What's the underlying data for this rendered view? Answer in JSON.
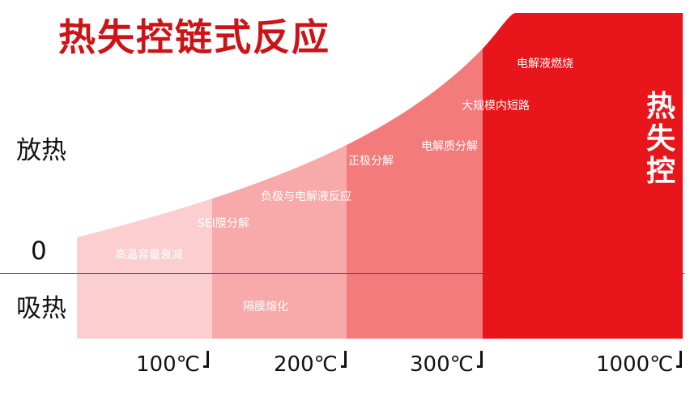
{
  "title": "热失控链式反应",
  "y_labels": {
    "exothermic": "放热",
    "zero": "0",
    "endothermic": "吸热"
  },
  "events": {
    "capacity_fade": "高温容量衰减",
    "sei_decomposition": "SEI膜分解",
    "separator_melting": "隔膜熔化",
    "anode_electrolyte": "负极与电解液反应",
    "cathode_decomposition": "正极分解",
    "electrolyte_decomposition": "电解质分解",
    "internal_short": "大规模内短路",
    "electrolyte_combustion": "电解液燃烧"
  },
  "temperatures": [
    "100℃",
    "200℃",
    "300℃",
    "1000℃"
  ],
  "runaway_label": "热\n失\n控",
  "colors": {
    "title": "#cc1418",
    "zone1": "#fbcfcf",
    "zone2": "#f8a9a9",
    "zone3": "#f47b7b",
    "zone4": "#ee4a4a",
    "zone5": "#e8151b"
  }
}
